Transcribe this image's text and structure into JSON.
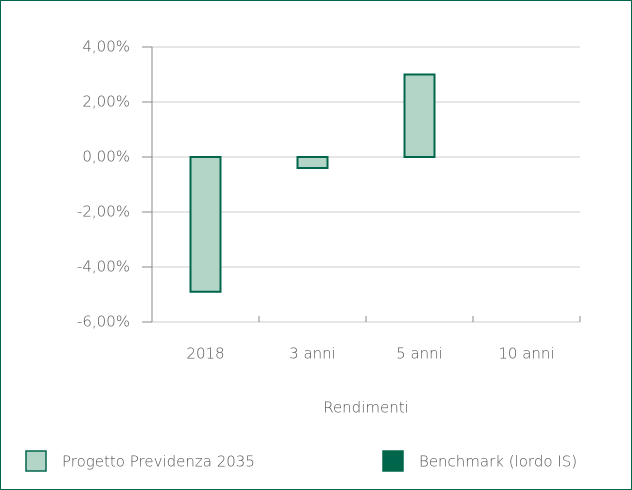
{
  "chart_data": {
    "type": "bar",
    "categories": [
      "2018",
      "3 anni",
      "5 anni",
      "10 anni"
    ],
    "series": [
      {
        "name": "Progetto Previdenza 2035",
        "color": "#b3d5c7",
        "stroke": "#00664b",
        "values": [
          -4.9,
          -0.4,
          3.0,
          null
        ]
      },
      {
        "name": "Benchmark (lordo IS)",
        "color": "#00664b",
        "stroke": "#00664b",
        "values": [
          null,
          null,
          null,
          null
        ]
      }
    ],
    "x_label": "Rendimenti",
    "ylim": [
      -6,
      4
    ],
    "yticks": [
      {
        "value": -6,
        "label": "-6,00%"
      },
      {
        "value": -4,
        "label": "-4,00%"
      },
      {
        "value": -2,
        "label": "-2,00%"
      },
      {
        "value": 0,
        "label": "0,00%"
      },
      {
        "value": 2,
        "label": "2,00%"
      },
      {
        "value": 4,
        "label": "4,00%"
      }
    ],
    "grid": true
  }
}
